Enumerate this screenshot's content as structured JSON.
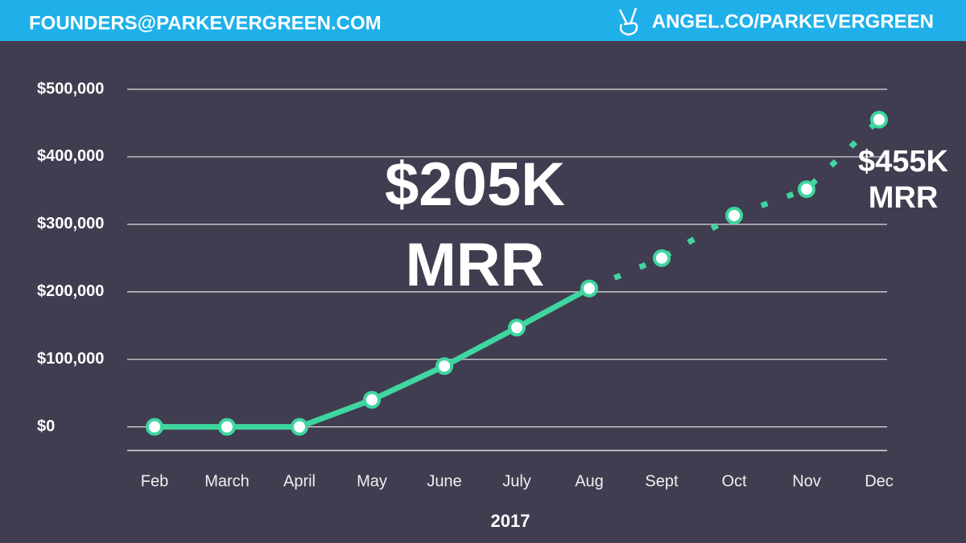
{
  "header": {
    "email": "FOUNDERS@PARKEVERGREEN.COM",
    "link": "ANGEL.CO/PARKEVERGREEN"
  },
  "chart_data": {
    "type": "line",
    "x_label": "2017",
    "categories": [
      "Feb",
      "March",
      "April",
      "May",
      "June",
      "July",
      "Aug",
      "Sept",
      "Oct",
      "Nov",
      "Dec"
    ],
    "series": [
      {
        "color": "#3fd6a0",
        "style": "solid",
        "values": [
          0,
          0,
          0,
          40000,
          90000,
          147000,
          205000,
          null,
          null,
          null,
          null
        ]
      },
      {
        "color": "#3fd6a0",
        "style": "dotted",
        "values": [
          null,
          null,
          null,
          null,
          null,
          null,
          205000,
          250000,
          313000,
          352000,
          455000
        ]
      }
    ],
    "ylim": [
      -35000,
      500000
    ],
    "yticks": [
      {
        "value": 0,
        "label": "$0"
      },
      {
        "value": 100000,
        "label": "$100,000"
      },
      {
        "value": 200000,
        "label": "$200,000"
      },
      {
        "value": 300000,
        "label": "$300,000"
      },
      {
        "value": 400000,
        "label": "$400,000"
      },
      {
        "value": 500000,
        "label": "$500,000"
      }
    ],
    "grid": true,
    "annotations": [
      {
        "text": "$205K",
        "category": 6
      },
      {
        "text": "MRR",
        "category": 6
      },
      {
        "text": "$455K",
        "category": 10
      },
      {
        "text": "MRR",
        "category": 10
      }
    ]
  }
}
